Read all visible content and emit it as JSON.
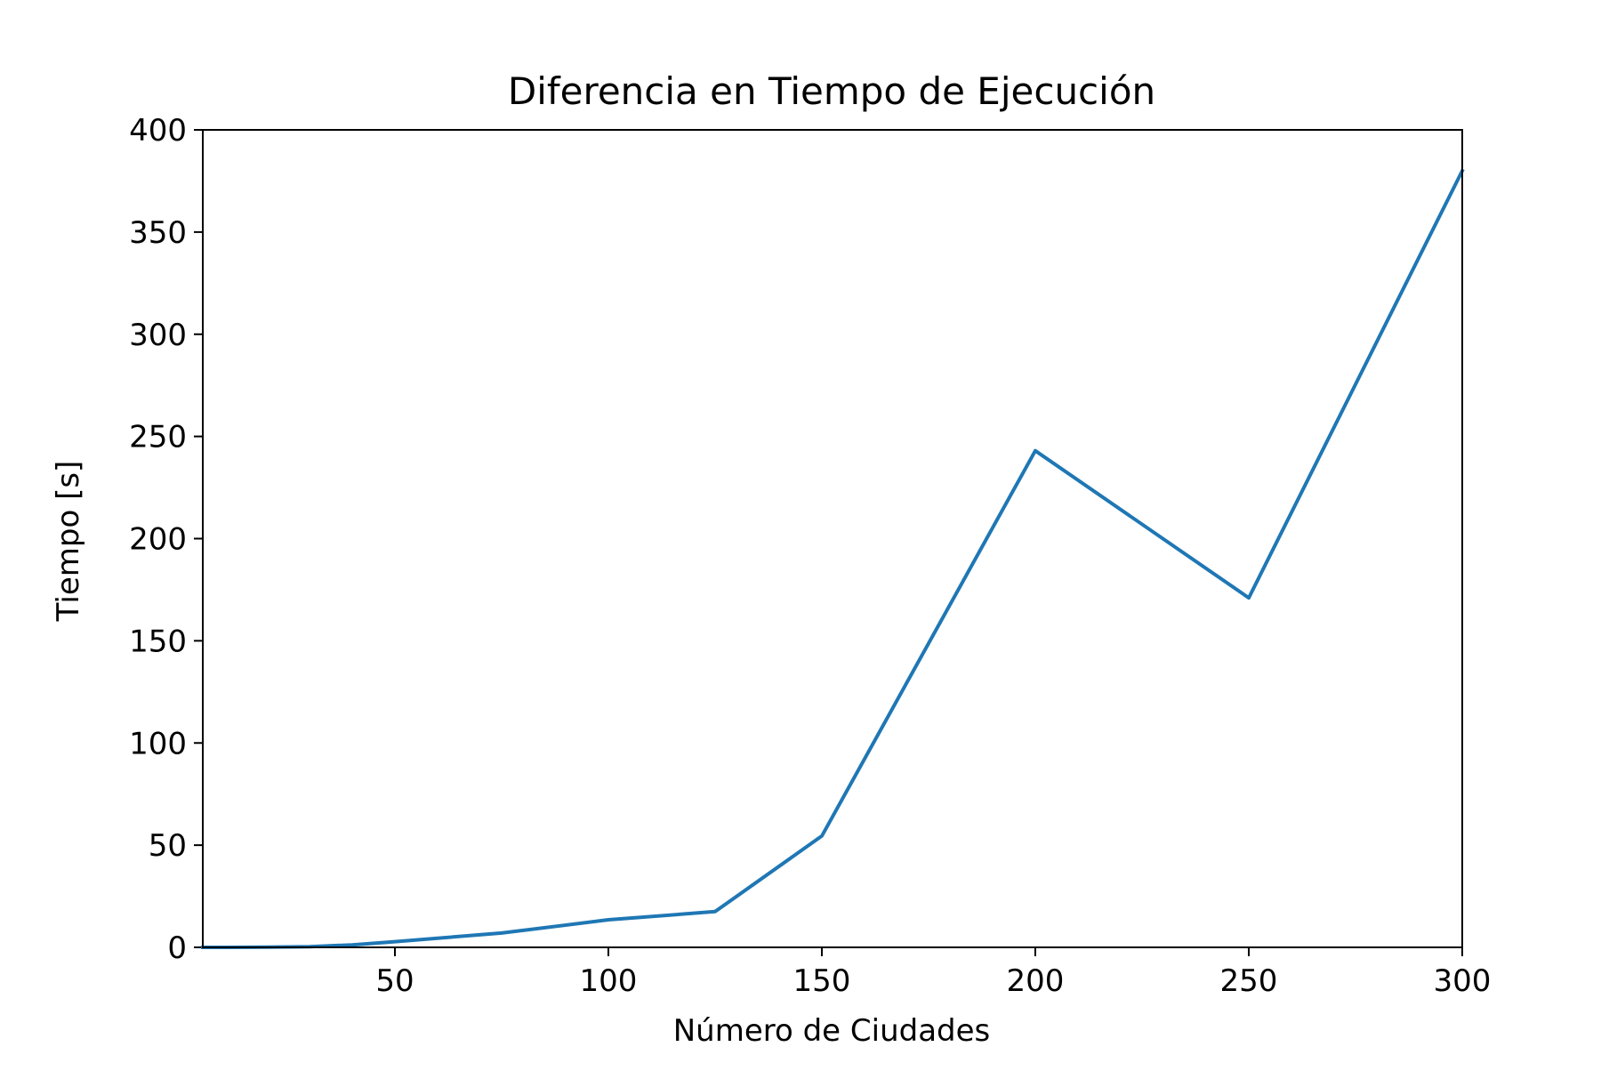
{
  "chart_data": {
    "type": "line",
    "title": "Diferencia en Tiempo de Ejecución",
    "xlabel": "Número de Ciudades",
    "ylabel": "Tiempo [s]",
    "xlim": [
      5,
      300
    ],
    "ylim": [
      0,
      400
    ],
    "xticks": [
      50,
      100,
      150,
      200,
      250,
      300
    ],
    "yticks": [
      0,
      50,
      100,
      150,
      200,
      250,
      300,
      350,
      400
    ],
    "grid": false,
    "legend": "none",
    "series": [
      {
        "color": "#1f77b4",
        "x": [
          5,
          10,
          20,
          30,
          40,
          50,
          75,
          100,
          125,
          150,
          200,
          250,
          300
        ],
        "y": [
          0,
          0,
          0.1,
          0.3,
          1.2,
          2.8,
          7,
          13.5,
          17.5,
          54.5,
          243,
          171,
          380
        ]
      }
    ]
  }
}
